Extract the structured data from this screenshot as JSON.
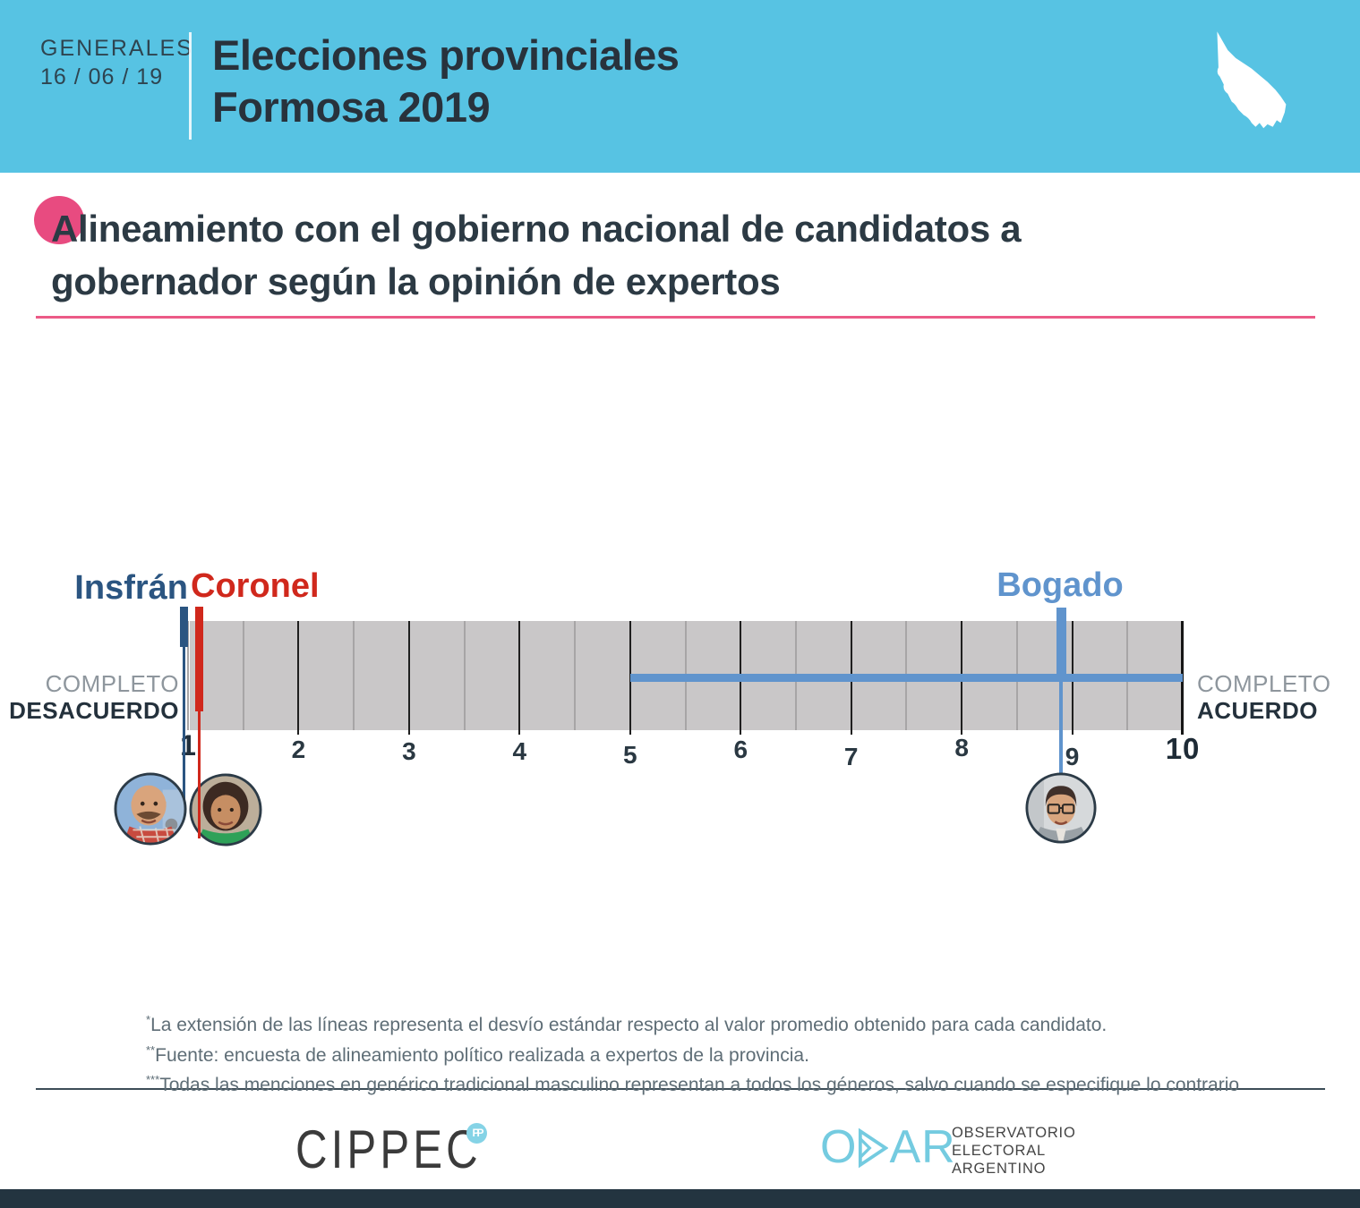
{
  "header": {
    "kicker_line1": "GENERALES",
    "kicker_line2": "16 / 06 / 19",
    "title_line1": "Elecciones provinciales",
    "title_line2": "Formosa 2019",
    "bg_color": "#57c3e3"
  },
  "headline": {
    "line1": "Alineamiento con el gobierno nacional de candidatos a",
    "line2": "gobernador según la opinión de expertos",
    "accent_color": "#e84b80",
    "rule_color": "#ec5a87"
  },
  "chart_data": {
    "type": "scatter",
    "title": "Alineamiento con el gobierno nacional de candidatos a gobernador según la opinión de expertos",
    "axis": {
      "min": 1,
      "max": 10,
      "tick_labels": [
        "1",
        "2",
        "3",
        "4",
        "5",
        "6",
        "7",
        "8",
        "9",
        "10"
      ],
      "left_label_line1": "COMPLETO",
      "left_label_line2": "DESACUERDO",
      "right_label_line1": "COMPLETO",
      "right_label_line2": "ACUERDO"
    },
    "series": [
      {
        "name": "Insfrán",
        "value": 1.0,
        "sd_min": 1.0,
        "sd_max": 1.0,
        "color": "#2b5581"
      },
      {
        "name": "Coronel",
        "value": 1.1,
        "sd_min": 1.1,
        "sd_max": 1.1,
        "color": "#d0281c"
      },
      {
        "name": "Bogado",
        "value": 8.9,
        "sd_min": 5.0,
        "sd_max": 10.0,
        "color": "#6094cd"
      }
    ],
    "band_color": "#c9c7c8",
    "legend_position": "none",
    "grid": "half-unit ticks"
  },
  "footnotes": [
    {
      "stars": "*",
      "text": "La extensión de las líneas representa el desvío estándar respecto al valor promedio obtenido para cada candidato."
    },
    {
      "stars": "**",
      "text": "Fuente: encuesta de alineamiento político realizada a expertos de la provincia."
    },
    {
      "stars": "***",
      "text": "Todas las menciones en genérico tradicional masculino representan a todos los géneros, salvo cuando se especifique lo contrario"
    }
  ],
  "footer": {
    "cippec_label": "CIPPEC",
    "cippec_badge": "PP",
    "oear_o": "O",
    "oear_ar": "AR",
    "oear_line1": "OBSERVATORIO",
    "oear_line2": "ELECTORAL",
    "oear_line3": "ARGENTINO",
    "bottom_bar_color": "#233440"
  }
}
